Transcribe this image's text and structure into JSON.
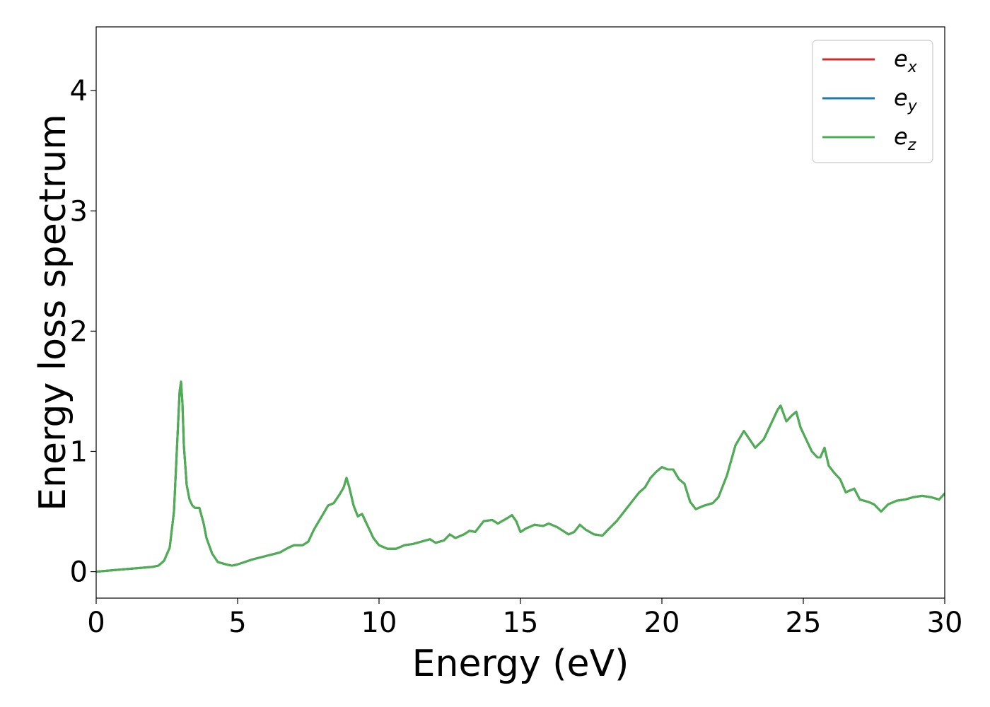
{
  "chart_data": {
    "type": "line",
    "title": "",
    "xlabel": "Energy (eV)",
    "ylabel": "Energy loss spectrum",
    "xlim": [
      0,
      30
    ],
    "ylim": [
      -0.22,
      4.53
    ],
    "xticks": [
      0,
      5,
      10,
      15,
      20,
      25,
      30
    ],
    "yticks": [
      0,
      1,
      2,
      3,
      4
    ],
    "grid": false,
    "legend_position": "top-right",
    "series": [
      {
        "name": "e",
        "subscript": "x",
        "color": "#d62728"
      },
      {
        "name": "e",
        "subscript": "y",
        "color": "#1f77b4"
      },
      {
        "name": "e",
        "subscript": "z",
        "color": "#4caf50"
      }
    ],
    "curve": [
      [
        0.0,
        0.0
      ],
      [
        0.5,
        0.01
      ],
      [
        1.0,
        0.02
      ],
      [
        1.5,
        0.03
      ],
      [
        2.0,
        0.04
      ],
      [
        2.2,
        0.05
      ],
      [
        2.4,
        0.09
      ],
      [
        2.6,
        0.2
      ],
      [
        2.75,
        0.5
      ],
      [
        2.85,
        1.0
      ],
      [
        2.95,
        1.5
      ],
      [
        3.0,
        1.58
      ],
      [
        3.05,
        1.4
      ],
      [
        3.1,
        1.05
      ],
      [
        3.2,
        0.72
      ],
      [
        3.3,
        0.6
      ],
      [
        3.4,
        0.55
      ],
      [
        3.5,
        0.53
      ],
      [
        3.65,
        0.53
      ],
      [
        3.8,
        0.4
      ],
      [
        3.9,
        0.28
      ],
      [
        4.1,
        0.15
      ],
      [
        4.3,
        0.08
      ],
      [
        4.6,
        0.06
      ],
      [
        4.8,
        0.05
      ],
      [
        5.0,
        0.06
      ],
      [
        5.5,
        0.1
      ],
      [
        6.0,
        0.13
      ],
      [
        6.5,
        0.16
      ],
      [
        6.8,
        0.2
      ],
      [
        7.0,
        0.22
      ],
      [
        7.3,
        0.22
      ],
      [
        7.5,
        0.25
      ],
      [
        7.7,
        0.35
      ],
      [
        8.0,
        0.47
      ],
      [
        8.2,
        0.55
      ],
      [
        8.4,
        0.57
      ],
      [
        8.6,
        0.64
      ],
      [
        8.75,
        0.7
      ],
      [
        8.85,
        0.78
      ],
      [
        8.95,
        0.7
      ],
      [
        9.1,
        0.55
      ],
      [
        9.25,
        0.46
      ],
      [
        9.4,
        0.48
      ],
      [
        9.6,
        0.38
      ],
      [
        9.8,
        0.28
      ],
      [
        10.0,
        0.22
      ],
      [
        10.3,
        0.19
      ],
      [
        10.6,
        0.19
      ],
      [
        10.9,
        0.22
      ],
      [
        11.2,
        0.23
      ],
      [
        11.5,
        0.25
      ],
      [
        11.8,
        0.27
      ],
      [
        12.0,
        0.24
      ],
      [
        12.3,
        0.26
      ],
      [
        12.5,
        0.31
      ],
      [
        12.7,
        0.28
      ],
      [
        13.0,
        0.31
      ],
      [
        13.2,
        0.34
      ],
      [
        13.4,
        0.33
      ],
      [
        13.7,
        0.42
      ],
      [
        14.0,
        0.43
      ],
      [
        14.2,
        0.4
      ],
      [
        14.5,
        0.44
      ],
      [
        14.7,
        0.47
      ],
      [
        14.85,
        0.42
      ],
      [
        15.0,
        0.33
      ],
      [
        15.2,
        0.36
      ],
      [
        15.5,
        0.39
      ],
      [
        15.8,
        0.38
      ],
      [
        16.0,
        0.4
      ],
      [
        16.3,
        0.37
      ],
      [
        16.5,
        0.34
      ],
      [
        16.7,
        0.31
      ],
      [
        16.9,
        0.33
      ],
      [
        17.1,
        0.39
      ],
      [
        17.3,
        0.35
      ],
      [
        17.6,
        0.31
      ],
      [
        17.9,
        0.3
      ],
      [
        18.1,
        0.35
      ],
      [
        18.4,
        0.42
      ],
      [
        18.7,
        0.51
      ],
      [
        19.0,
        0.6
      ],
      [
        19.2,
        0.66
      ],
      [
        19.4,
        0.7
      ],
      [
        19.6,
        0.78
      ],
      [
        19.8,
        0.83
      ],
      [
        20.0,
        0.87
      ],
      [
        20.2,
        0.85
      ],
      [
        20.4,
        0.85
      ],
      [
        20.6,
        0.77
      ],
      [
        20.8,
        0.73
      ],
      [
        21.0,
        0.58
      ],
      [
        21.2,
        0.52
      ],
      [
        21.5,
        0.55
      ],
      [
        21.8,
        0.57
      ],
      [
        22.0,
        0.62
      ],
      [
        22.3,
        0.8
      ],
      [
        22.6,
        1.05
      ],
      [
        22.9,
        1.17
      ],
      [
        23.1,
        1.1
      ],
      [
        23.3,
        1.03
      ],
      [
        23.6,
        1.1
      ],
      [
        23.9,
        1.25
      ],
      [
        24.1,
        1.35
      ],
      [
        24.2,
        1.38
      ],
      [
        24.4,
        1.25
      ],
      [
        24.6,
        1.3
      ],
      [
        24.75,
        1.33
      ],
      [
        24.9,
        1.2
      ],
      [
        25.1,
        1.1
      ],
      [
        25.3,
        1.0
      ],
      [
        25.5,
        0.95
      ],
      [
        25.6,
        0.95
      ],
      [
        25.75,
        1.03
      ],
      [
        25.9,
        0.88
      ],
      [
        26.1,
        0.82
      ],
      [
        26.3,
        0.77
      ],
      [
        26.5,
        0.66
      ],
      [
        26.8,
        0.69
      ],
      [
        27.0,
        0.6
      ],
      [
        27.3,
        0.58
      ],
      [
        27.5,
        0.56
      ],
      [
        27.75,
        0.5
      ],
      [
        28.0,
        0.56
      ],
      [
        28.3,
        0.59
      ],
      [
        28.6,
        0.6
      ],
      [
        28.9,
        0.62
      ],
      [
        29.2,
        0.63
      ],
      [
        29.5,
        0.62
      ],
      [
        29.8,
        0.6
      ],
      [
        30.0,
        0.65
      ]
    ]
  }
}
